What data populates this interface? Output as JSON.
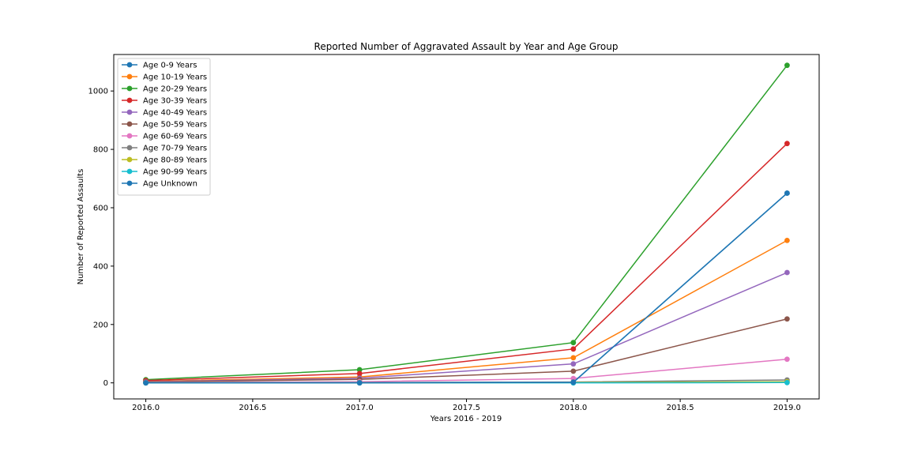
{
  "chart_data": {
    "type": "line",
    "title": "Reported Number of Aggravated Assault by Year and Age Group",
    "xlabel": "Years 2016 - 2019",
    "ylabel": "Number of Reported Assaults",
    "x": [
      2016,
      2017,
      2018,
      2019
    ],
    "xlim": [
      2015.85,
      2019.15
    ],
    "ylim": [
      -55,
      1125
    ],
    "xticks": [
      2016.0,
      2016.5,
      2017.0,
      2017.5,
      2018.0,
      2018.5,
      2019.0
    ],
    "xtick_labels": [
      "2016.0",
      "2016.5",
      "2017.0",
      "2017.5",
      "2018.0",
      "2018.5",
      "2019.0"
    ],
    "yticks": [
      0,
      200,
      400,
      600,
      800,
      1000
    ],
    "ytick_labels": [
      "0",
      "200",
      "400",
      "600",
      "800",
      "1000"
    ],
    "grid": false,
    "legend_position": "top-left",
    "series": [
      {
        "name": "Age 0-9 Years",
        "color": "#1f77b4",
        "values": [
          1,
          1,
          2,
          650
        ]
      },
      {
        "name": "Age 10-19 Years",
        "color": "#ff7f0e",
        "values": [
          5,
          20,
          86,
          488
        ]
      },
      {
        "name": "Age 20-29 Years",
        "color": "#2ca02c",
        "values": [
          11,
          45,
          138,
          1088
        ]
      },
      {
        "name": "Age 30-39 Years",
        "color": "#d62728",
        "values": [
          8,
          32,
          116,
          820
        ]
      },
      {
        "name": "Age 40-49 Years",
        "color": "#9467bd",
        "values": [
          4,
          16,
          65,
          378
        ]
      },
      {
        "name": "Age 50-59 Years",
        "color": "#8c564b",
        "values": [
          3,
          12,
          40,
          219
        ]
      },
      {
        "name": "Age 60-69 Years",
        "color": "#e377c2",
        "values": [
          1,
          4,
          15,
          81
        ]
      },
      {
        "name": "Age 70-79 Years",
        "color": "#7f7f7f",
        "values": [
          0,
          1,
          3,
          10
        ]
      },
      {
        "name": "Age 80-89 Years",
        "color": "#bcbd22",
        "values": [
          0,
          0,
          1,
          4
        ]
      },
      {
        "name": "Age 90-99 Years",
        "color": "#17becf",
        "values": [
          0,
          0,
          0,
          1
        ]
      },
      {
        "name": "Age Unknown",
        "color": "#1f77b4",
        "values": [
          0,
          0,
          2,
          650
        ]
      }
    ]
  }
}
